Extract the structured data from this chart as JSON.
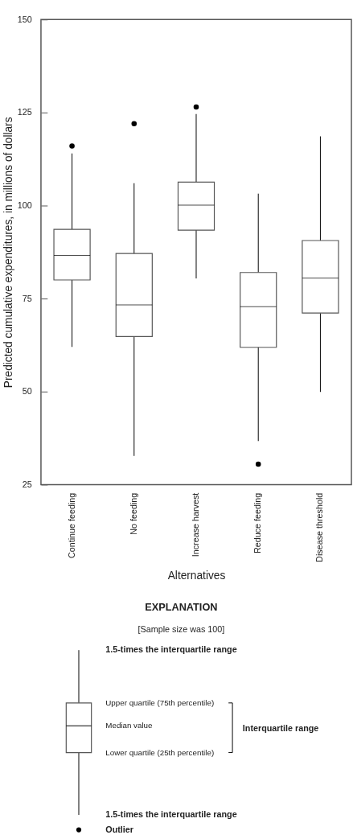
{
  "chart_data": {
    "type": "box",
    "categories": [
      "Continue feeding",
      "No feeding",
      "Increase harvest",
      "Reduce feeding",
      "Disease threshold"
    ],
    "boxes": [
      {
        "low": 62,
        "q1": 80,
        "median": 86.6,
        "q3": 93.6,
        "high": 114,
        "outliers": [
          116
        ]
      },
      {
        "low": 32.7,
        "q1": 64.8,
        "median": 73.3,
        "q3": 87.1,
        "high": 106,
        "outliers": [
          122
        ]
      },
      {
        "low": 80.4,
        "q1": 93.4,
        "median": 100.1,
        "q3": 106.3,
        "high": 124.6,
        "outliers": [
          126.5
        ]
      },
      {
        "low": 36.7,
        "q1": 61.9,
        "median": 72.8,
        "q3": 82,
        "high": 103.2,
        "outliers": [
          30.5
        ]
      },
      {
        "low": 49.9,
        "q1": 71.1,
        "median": 80.5,
        "q3": 90.6,
        "high": 118.6
      }
    ],
    "xlabel": "Alternatives",
    "ylabel": "Predicted cumulative expenditures, in millions of dollars",
    "ylim": [
      25,
      150
    ],
    "yticks": [
      25,
      50,
      75,
      100,
      125,
      150
    ],
    "grid": false,
    "annotations": [
      "EXPLANATION",
      "[Sample size was 100]",
      "1.5-times the interquartile range",
      "Upper quartile (75th percentile)",
      "Median value",
      "Lower quartile (25th percentile)",
      "Interquartile range",
      "1.5-times the interquartile range",
      "Outlier"
    ]
  }
}
